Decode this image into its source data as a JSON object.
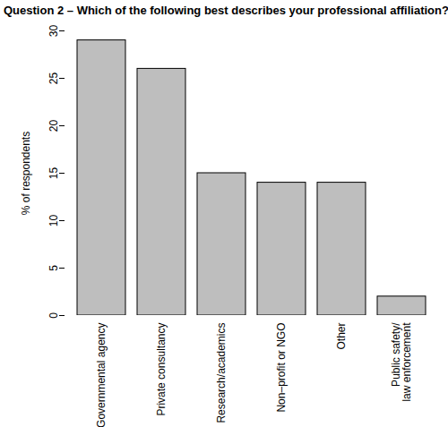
{
  "chart_data": {
    "type": "bar",
    "title": "Question 2 – Which of the following best describes your professional affiliation?",
    "y_label": "% of respondents",
    "categories": [
      "Governmental agency",
      "Private consultancy",
      "Research/academics",
      "Non–profit or NGO",
      "Other",
      "Public safety/\nlaw enforcement"
    ],
    "values": [
      29,
      26,
      15,
      14,
      14,
      2
    ],
    "color": "#bebebe",
    "ylim": [
      0,
      30
    ],
    "yticks": [
      0,
      5,
      10,
      15,
      20,
      25,
      30
    ],
    "grid": false
  }
}
